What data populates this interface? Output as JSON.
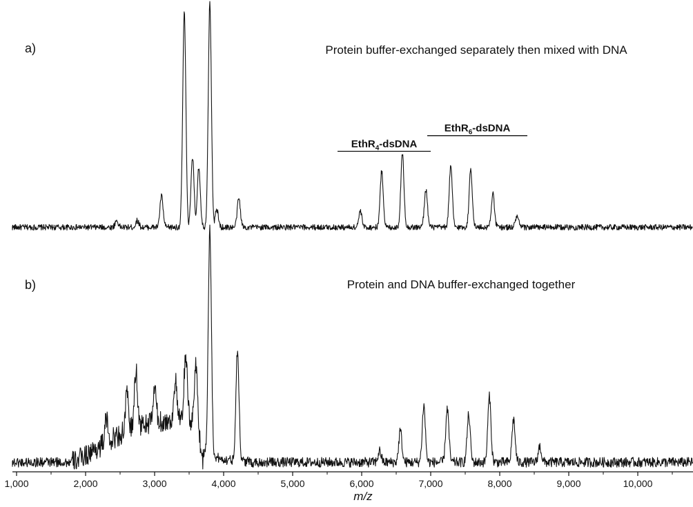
{
  "chart_data": {
    "type": "line",
    "xlabel": "m/z",
    "xlim": [
      1000,
      10800
    ],
    "x_tick_values": [
      1000,
      2000,
      3000,
      4000,
      5000,
      6000,
      7000,
      8000,
      9000,
      10000
    ],
    "x_tick_labels": [
      "1,000",
      "2,000",
      "3,000",
      "4,000",
      "5,000",
      "6,000",
      "7,000",
      "8,000",
      "9,000",
      "10,000"
    ],
    "y_axis_shown": false,
    "grid": false,
    "panels": [
      {
        "label": "a)",
        "title": "Protein buffer-exchanged separately then mixed with DNA",
        "ylim": [
          0,
          100
        ],
        "baseline": 2,
        "noise": 1.3,
        "peaks": [
          {
            "x": 2450,
            "y": 3
          },
          {
            "x": 2750,
            "y": 3
          },
          {
            "x": 3100,
            "y": 14
          },
          {
            "x": 3430,
            "y": 96
          },
          {
            "x": 3550,
            "y": 31
          },
          {
            "x": 3640,
            "y": 27
          },
          {
            "x": 3800,
            "y": 100
          },
          {
            "x": 3900,
            "y": 8
          },
          {
            "x": 4220,
            "y": 13
          },
          {
            "x": 5980,
            "y": 7
          },
          {
            "x": 6290,
            "y": 25
          },
          {
            "x": 6590,
            "y": 33
          },
          {
            "x": 6930,
            "y": 17
          },
          {
            "x": 7290,
            "y": 27
          },
          {
            "x": 7580,
            "y": 26
          },
          {
            "x": 7900,
            "y": 15
          },
          {
            "x": 8250,
            "y": 5
          }
        ],
        "annotations": [
          {
            "label": "EthR",
            "subscript": "4",
            "suffix": "-dsDNA",
            "x_start": 5650,
            "x_end": 7000,
            "y": 36
          },
          {
            "label": "EthR",
            "subscript": "6",
            "suffix": "-dsDNA",
            "x_start": 6950,
            "x_end": 8400,
            "y": 43
          }
        ]
      },
      {
        "label": "b)",
        "title": "Protein and DNA buffer-exchanged together",
        "ylim": [
          0,
          100
        ],
        "baseline": 3,
        "noise": 2.2,
        "peaks": [
          {
            "x": 2300,
            "y": 10
          },
          {
            "x": 2600,
            "y": 16
          },
          {
            "x": 2730,
            "y": 25
          },
          {
            "x": 3000,
            "y": 15
          },
          {
            "x": 3300,
            "y": 18
          },
          {
            "x": 3450,
            "y": 30
          },
          {
            "x": 3600,
            "y": 26
          },
          {
            "x": 3800,
            "y": 100
          },
          {
            "x": 4200,
            "y": 49
          },
          {
            "x": 6260,
            "y": 5
          },
          {
            "x": 6560,
            "y": 14
          },
          {
            "x": 6900,
            "y": 25
          },
          {
            "x": 7240,
            "y": 24
          },
          {
            "x": 7550,
            "y": 21
          },
          {
            "x": 7850,
            "y": 29
          },
          {
            "x": 8200,
            "y": 19
          },
          {
            "x": 8580,
            "y": 7
          }
        ],
        "broad_hump": {
          "from": 1800,
          "to": 3700,
          "max": 18
        }
      }
    ]
  }
}
